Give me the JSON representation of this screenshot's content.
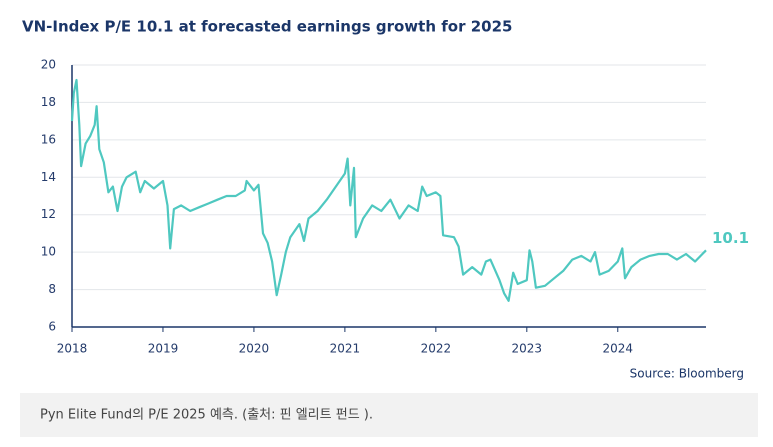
{
  "chart_data": {
    "type": "line",
    "title": "VN-Index P/E 10.1 at forecasted earnings growth for 2025",
    "source": "Source: Bloomberg",
    "end_label": "10.1",
    "caption": "Pyn Elite Fund의 P/E 2025 예측. (출처: 핀 엘리트 펀드 ).",
    "xlim": [
      2018,
      2024.97
    ],
    "xticks": [
      2018,
      2019,
      2020,
      2021,
      2022,
      2023,
      2024
    ],
    "ylim": [
      6,
      20
    ],
    "yticks": [
      6,
      8,
      10,
      12,
      14,
      16,
      18,
      20
    ],
    "grid": true,
    "series": [
      {
        "name": "VN-Index P/E",
        "color": "#4fc8c0",
        "x": [
          2018.0,
          2018.02,
          2018.05,
          2018.08,
          2018.1,
          2018.15,
          2018.2,
          2018.25,
          2018.27,
          2018.3,
          2018.35,
          2018.4,
          2018.45,
          2018.5,
          2018.55,
          2018.6,
          2018.7,
          2018.75,
          2018.8,
          2018.9,
          2019.0,
          2019.05,
          2019.08,
          2019.12,
          2019.2,
          2019.3,
          2019.4,
          2019.5,
          2019.6,
          2019.7,
          2019.8,
          2019.9,
          2019.92,
          2020.0,
          2020.05,
          2020.1,
          2020.15,
          2020.2,
          2020.25,
          2020.3,
          2020.35,
          2020.4,
          2020.5,
          2020.55,
          2020.6,
          2020.7,
          2020.8,
          2020.9,
          2021.0,
          2021.03,
          2021.06,
          2021.1,
          2021.12,
          2021.2,
          2021.3,
          2021.4,
          2021.5,
          2021.6,
          2021.7,
          2021.8,
          2021.85,
          2021.9,
          2022.0,
          2022.05,
          2022.08,
          2022.2,
          2022.25,
          2022.3,
          2022.4,
          2022.5,
          2022.55,
          2022.6,
          2022.7,
          2022.75,
          2022.8,
          2022.85,
          2022.9,
          2023.0,
          2023.03,
          2023.06,
          2023.1,
          2023.2,
          2023.3,
          2023.4,
          2023.5,
          2023.6,
          2023.7,
          2023.75,
          2023.8,
          2023.9,
          2024.0,
          2024.05,
          2024.08,
          2024.15,
          2024.25,
          2024.35,
          2024.45,
          2024.55,
          2024.65,
          2024.75,
          2024.85,
          2024.97
        ],
        "values": [
          17.0,
          18.5,
          19.2,
          16.8,
          14.6,
          15.8,
          16.2,
          16.8,
          17.8,
          15.5,
          14.8,
          13.2,
          13.5,
          12.2,
          13.5,
          14.0,
          14.3,
          13.2,
          13.8,
          13.4,
          13.8,
          12.5,
          10.2,
          12.3,
          12.5,
          12.2,
          12.4,
          12.6,
          12.8,
          13.0,
          13.0,
          13.3,
          13.8,
          13.3,
          13.6,
          11.0,
          10.5,
          9.5,
          7.7,
          8.8,
          10.0,
          10.8,
          11.5,
          10.6,
          11.8,
          12.2,
          12.8,
          13.5,
          14.2,
          15.0,
          12.5,
          14.5,
          10.8,
          11.8,
          12.5,
          12.2,
          12.8,
          11.8,
          12.5,
          12.2,
          13.5,
          13.0,
          13.2,
          13.0,
          10.9,
          10.8,
          10.3,
          8.8,
          9.2,
          8.8,
          9.5,
          9.6,
          8.5,
          7.8,
          7.4,
          8.9,
          8.3,
          8.5,
          10.1,
          9.5,
          8.1,
          8.2,
          8.6,
          9.0,
          9.6,
          9.8,
          9.5,
          10.0,
          8.8,
          9.0,
          9.5,
          10.2,
          8.6,
          9.2,
          9.6,
          9.8,
          9.9,
          9.9,
          9.6,
          9.9,
          9.5,
          10.1
        ]
      }
    ]
  }
}
